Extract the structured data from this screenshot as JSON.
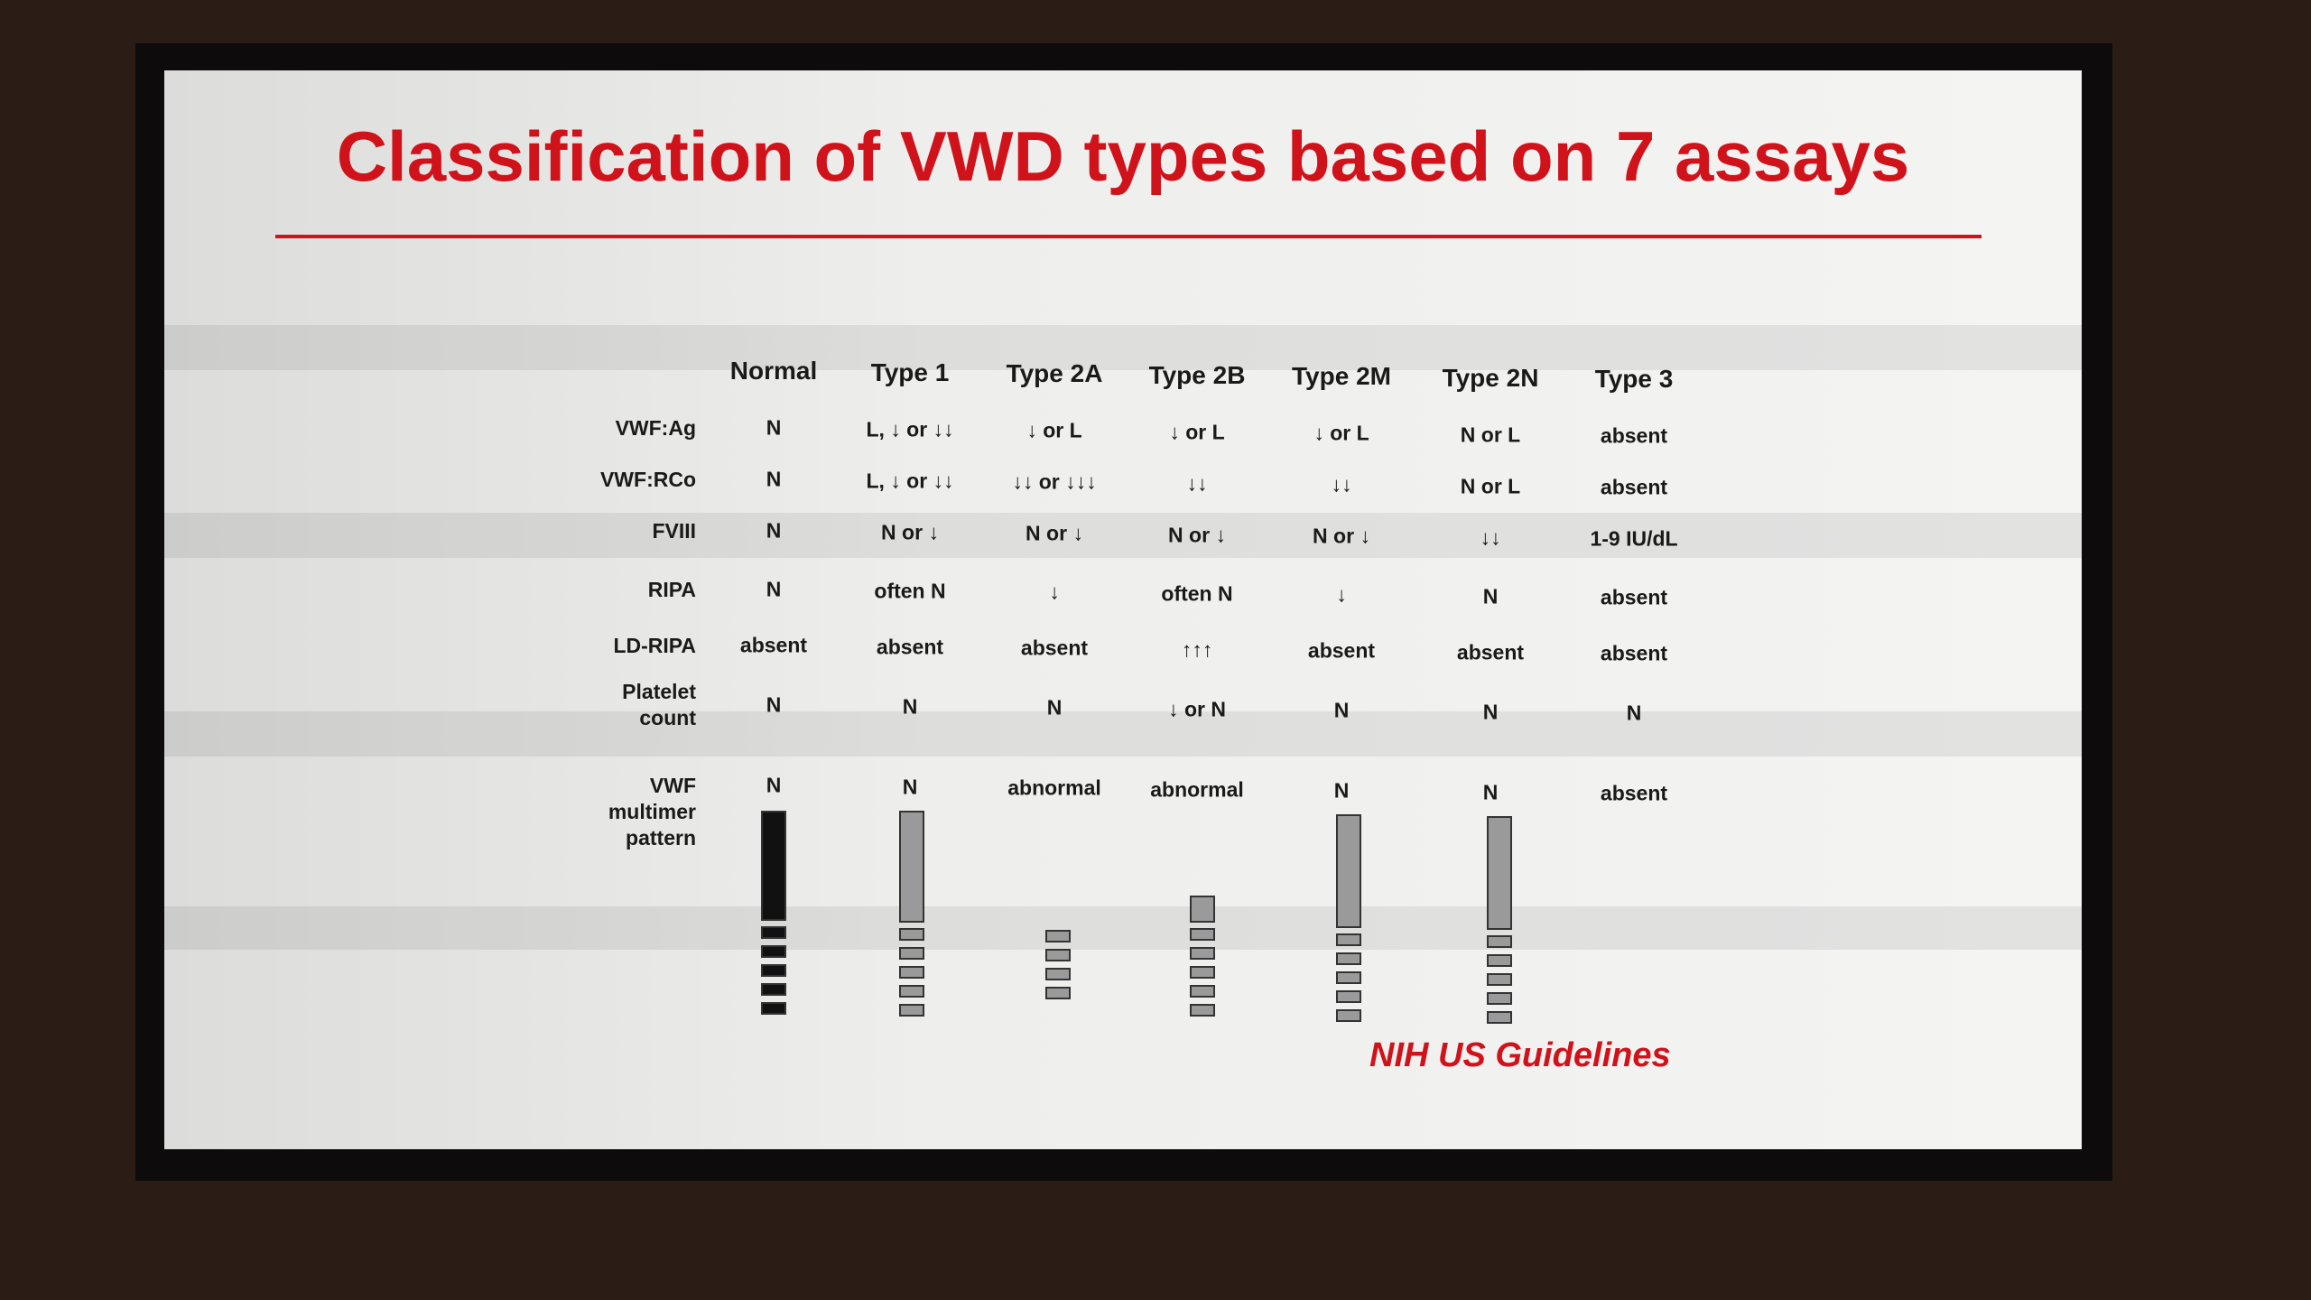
{
  "slide": {
    "title": "Classification of VWD types based on 7 assays",
    "table": {
      "columns": [
        "Normal",
        "Type 1",
        "Type 2A",
        "Type 2B",
        "Type 2M",
        "Type 2N",
        "Type 3"
      ],
      "rows": [
        {
          "label": "VWF:Ag",
          "cells": [
            "N",
            "L, ↓ or ↓↓",
            "↓ or L",
            "↓ or L",
            "↓ or L",
            "N or L",
            "absent"
          ]
        },
        {
          "label": "VWF:RCo",
          "cells": [
            "N",
            "L, ↓ or ↓↓",
            "↓↓ or ↓↓↓",
            "↓↓",
            "↓↓",
            "N or L",
            "absent"
          ]
        },
        {
          "label": "FVIII",
          "cells": [
            "N",
            "N or ↓",
            "N or ↓",
            "N or ↓",
            "N or ↓",
            "↓↓",
            "1-9 IU/dL"
          ]
        },
        {
          "label": "RIPA",
          "cells": [
            "N",
            "often N",
            "↓",
            "often N",
            "↓",
            "N",
            "absent"
          ]
        },
        {
          "label": "LD-RIPA",
          "cells": [
            "absent",
            "absent",
            "absent",
            "↑↑↑",
            "absent",
            "absent",
            "absent"
          ]
        },
        {
          "label": "Platelet count",
          "cells": [
            "N",
            "N",
            "N",
            "↓ or N",
            "N",
            "N",
            "N"
          ]
        },
        {
          "label": "VWF multimer pattern",
          "cells": [
            "N",
            "N",
            "abnormal",
            "abnormal",
            "N",
            "N",
            "absent"
          ]
        }
      ]
    },
    "footnote": "NIH US Guidelines"
  }
}
